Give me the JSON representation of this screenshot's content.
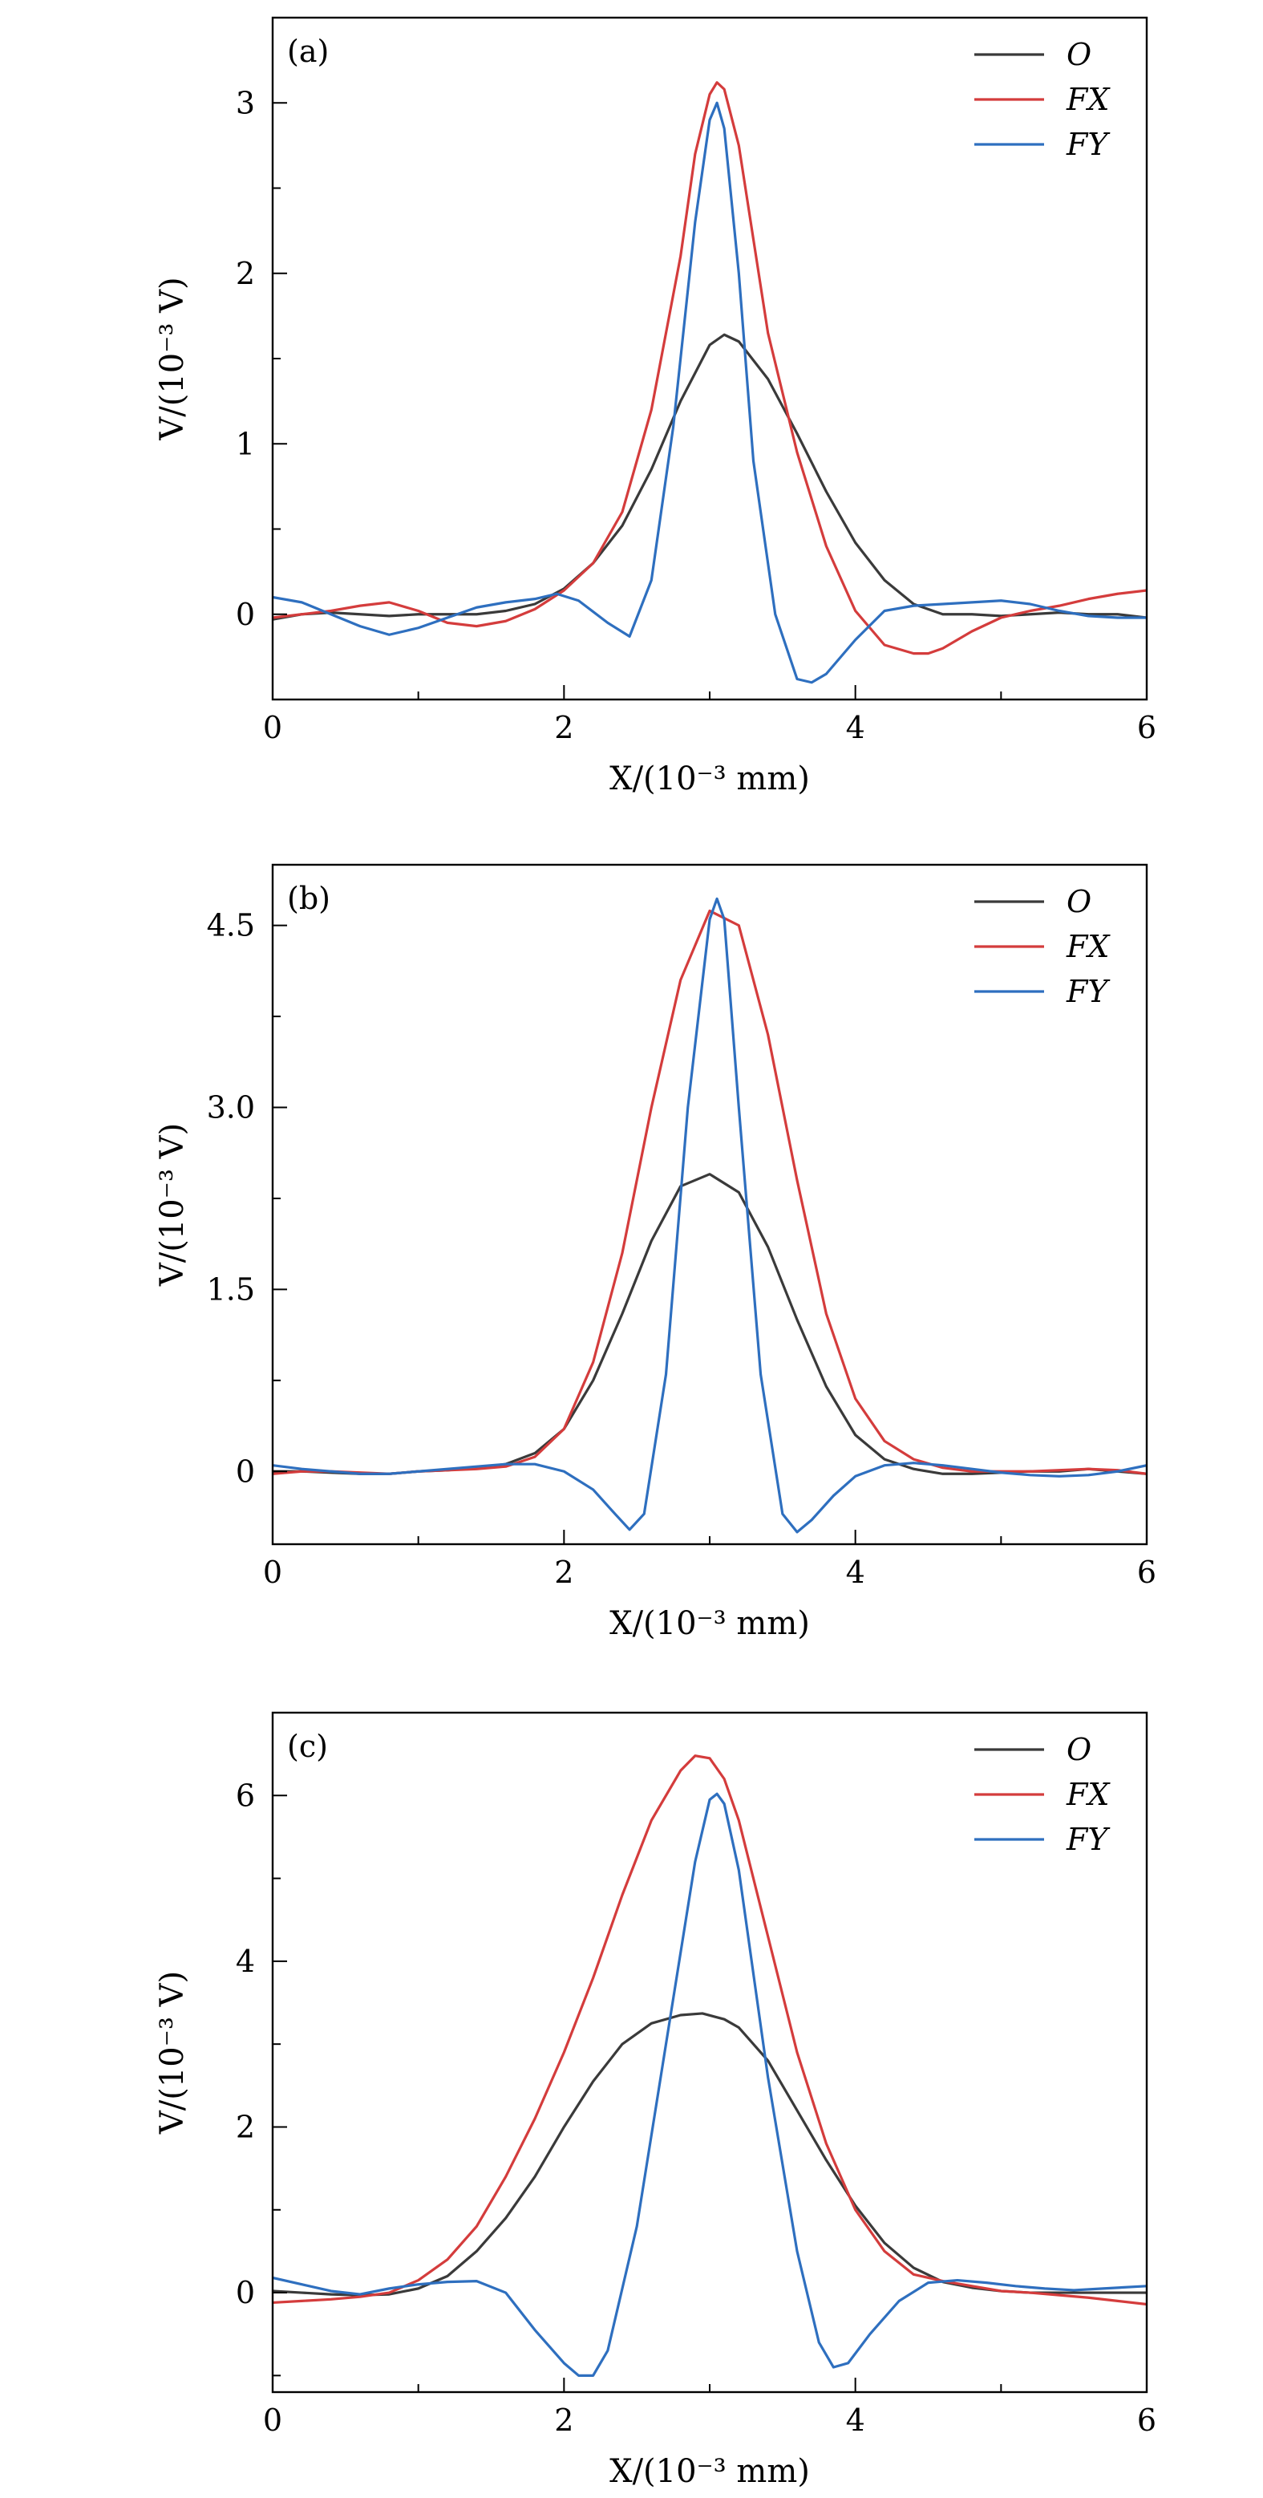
{
  "chart_data": [
    {
      "type": "line",
      "panel_label": "(a)",
      "xlabel": "X/(10⁻³ mm)",
      "ylabel": "V/(10⁻³ V)",
      "xlim": [
        0,
        6
      ],
      "ylim": [
        -0.5,
        3.5
      ],
      "xticks": [
        "0",
        "2",
        "4",
        "6"
      ],
      "yticks": [
        "0",
        "1",
        "2",
        "3"
      ],
      "legend_position": "top-right",
      "series": [
        {
          "name": "O",
          "color": "#3a3a3a",
          "x": [
            0,
            0.2,
            0.4,
            0.6,
            0.8,
            1.0,
            1.2,
            1.4,
            1.6,
            1.8,
            2.0,
            2.2,
            2.4,
            2.6,
            2.8,
            3.0,
            3.1,
            3.2,
            3.4,
            3.6,
            3.8,
            4.0,
            4.2,
            4.4,
            4.6,
            4.8,
            5.0,
            5.2,
            5.4,
            5.6,
            5.8,
            6.0
          ],
          "y": [
            -0.03,
            0.0,
            0.01,
            0.0,
            -0.01,
            0.0,
            0.0,
            0.0,
            0.02,
            0.06,
            0.15,
            0.3,
            0.52,
            0.85,
            1.25,
            1.58,
            1.64,
            1.6,
            1.38,
            1.06,
            0.72,
            0.42,
            0.2,
            0.06,
            0.0,
            0.0,
            -0.01,
            0.0,
            0.01,
            0.0,
            0.0,
            -0.02
          ]
        },
        {
          "name": "FX",
          "color": "#d43c3c",
          "x": [
            0,
            0.2,
            0.4,
            0.6,
            0.8,
            1.0,
            1.2,
            1.4,
            1.6,
            1.8,
            2.0,
            2.2,
            2.4,
            2.6,
            2.8,
            2.9,
            3.0,
            3.05,
            3.1,
            3.2,
            3.3,
            3.4,
            3.6,
            3.8,
            4.0,
            4.2,
            4.4,
            4.5,
            4.6,
            4.8,
            5.0,
            5.2,
            5.4,
            5.6,
            5.8,
            6.0
          ],
          "y": [
            -0.02,
            0.0,
            0.02,
            0.05,
            0.07,
            0.02,
            -0.05,
            -0.07,
            -0.04,
            0.03,
            0.14,
            0.3,
            0.6,
            1.2,
            2.1,
            2.7,
            3.05,
            3.12,
            3.08,
            2.75,
            2.2,
            1.65,
            0.95,
            0.4,
            0.02,
            -0.18,
            -0.23,
            -0.23,
            -0.2,
            -0.1,
            -0.02,
            0.02,
            0.05,
            0.09,
            0.12,
            0.14
          ]
        },
        {
          "name": "FY",
          "color": "#2e6fbf",
          "x": [
            0,
            0.2,
            0.4,
            0.6,
            0.8,
            1.0,
            1.2,
            1.4,
            1.6,
            1.8,
            1.95,
            2.1,
            2.3,
            2.45,
            2.6,
            2.75,
            2.9,
            3.0,
            3.05,
            3.1,
            3.2,
            3.3,
            3.45,
            3.6,
            3.7,
            3.8,
            4.0,
            4.2,
            4.4,
            4.6,
            4.8,
            5.0,
            5.2,
            5.4,
            5.6,
            5.8,
            6.0
          ],
          "y": [
            0.1,
            0.07,
            0.0,
            -0.07,
            -0.12,
            -0.08,
            -0.02,
            0.04,
            0.07,
            0.09,
            0.12,
            0.08,
            -0.05,
            -0.13,
            0.2,
            1.1,
            2.3,
            2.9,
            3.0,
            2.85,
            2.0,
            0.9,
            0.0,
            -0.38,
            -0.4,
            -0.35,
            -0.15,
            0.02,
            0.05,
            0.06,
            0.07,
            0.08,
            0.06,
            0.02,
            -0.01,
            -0.02,
            -0.02
          ]
        }
      ]
    },
    {
      "type": "line",
      "panel_label": "(b)",
      "xlabel": "X/(10⁻³ mm)",
      "ylabel": "V/(10⁻³ V)",
      "xlim": [
        0,
        6
      ],
      "ylim": [
        -0.6,
        5.0
      ],
      "xticks": [
        "0",
        "2",
        "4",
        "6"
      ],
      "yticks": [
        "0",
        "1.5",
        "3.0",
        "4.5"
      ],
      "legend_position": "top-right",
      "series": [
        {
          "name": "O",
          "color": "#3a3a3a",
          "x": [
            0,
            0.2,
            0.4,
            0.6,
            0.8,
            1.0,
            1.2,
            1.4,
            1.6,
            1.8,
            2.0,
            2.2,
            2.4,
            2.6,
            2.8,
            3.0,
            3.2,
            3.4,
            3.6,
            3.8,
            4.0,
            4.2,
            4.4,
            4.6,
            4.8,
            5.0,
            5.2,
            5.4,
            5.6,
            5.8,
            6.0
          ],
          "y": [
            0.0,
            0.0,
            -0.01,
            -0.02,
            -0.02,
            0.0,
            0.01,
            0.03,
            0.06,
            0.15,
            0.35,
            0.75,
            1.3,
            1.9,
            2.35,
            2.45,
            2.3,
            1.85,
            1.25,
            0.7,
            0.3,
            0.1,
            0.02,
            -0.02,
            -0.02,
            -0.01,
            0.0,
            0.0,
            0.02,
            0.0,
            -0.02
          ]
        },
        {
          "name": "FX",
          "color": "#d43c3c",
          "x": [
            0,
            0.2,
            0.4,
            0.6,
            0.8,
            1.0,
            1.2,
            1.4,
            1.6,
            1.8,
            2.0,
            2.2,
            2.4,
            2.6,
            2.8,
            3.0,
            3.2,
            3.4,
            3.6,
            3.8,
            4.0,
            4.2,
            4.4,
            4.6,
            4.8,
            5.0,
            5.2,
            5.4,
            5.6,
            5.8,
            6.0
          ],
          "y": [
            -0.02,
            0.0,
            0.0,
            -0.01,
            -0.02,
            0.0,
            0.01,
            0.02,
            0.04,
            0.12,
            0.35,
            0.9,
            1.8,
            3.0,
            4.05,
            4.62,
            4.5,
            3.6,
            2.4,
            1.3,
            0.6,
            0.25,
            0.1,
            0.03,
            0.0,
            0.0,
            0.0,
            0.01,
            0.02,
            0.01,
            -0.02
          ]
        },
        {
          "name": "FY",
          "color": "#2e6fbf",
          "x": [
            0,
            0.2,
            0.4,
            0.6,
            0.8,
            1.0,
            1.2,
            1.4,
            1.6,
            1.8,
            2.0,
            2.2,
            2.35,
            2.45,
            2.55,
            2.7,
            2.85,
            3.0,
            3.05,
            3.1,
            3.2,
            3.35,
            3.5,
            3.6,
            3.7,
            3.85,
            4.0,
            4.2,
            4.4,
            4.6,
            4.8,
            5.0,
            5.2,
            5.4,
            5.6,
            5.8,
            6.0
          ],
          "y": [
            0.05,
            0.02,
            0.0,
            -0.02,
            -0.02,
            0.0,
            0.02,
            0.04,
            0.06,
            0.06,
            0.0,
            -0.15,
            -0.35,
            -0.48,
            -0.35,
            0.8,
            3.0,
            4.55,
            4.72,
            4.55,
            3.0,
            0.8,
            -0.35,
            -0.5,
            -0.4,
            -0.2,
            -0.04,
            0.05,
            0.07,
            0.05,
            0.02,
            -0.01,
            -0.03,
            -0.04,
            -0.03,
            0.0,
            0.05
          ]
        }
      ]
    },
    {
      "type": "line",
      "panel_label": "(c)",
      "xlabel": "X/(10⁻³ mm)",
      "ylabel": "V/(10⁻³ V)",
      "xlim": [
        0,
        6
      ],
      "ylim": [
        -1.2,
        7.0
      ],
      "xticks": [
        "0",
        "2",
        "4",
        "6"
      ],
      "yticks": [
        "0",
        "2",
        "4",
        "6"
      ],
      "legend_position": "top-right",
      "series": [
        {
          "name": "O",
          "color": "#3a3a3a",
          "x": [
            0,
            0.2,
            0.4,
            0.6,
            0.8,
            1.0,
            1.2,
            1.4,
            1.6,
            1.8,
            2.0,
            2.2,
            2.4,
            2.6,
            2.8,
            2.95,
            3.1,
            3.2,
            3.4,
            3.6,
            3.8,
            4.0,
            4.2,
            4.4,
            4.6,
            4.8,
            5.0,
            5.2,
            5.4,
            5.6,
            5.8,
            6.0
          ],
          "y": [
            0.02,
            0.0,
            -0.02,
            -0.03,
            -0.02,
            0.05,
            0.2,
            0.5,
            0.9,
            1.4,
            2.0,
            2.55,
            3.0,
            3.25,
            3.35,
            3.37,
            3.3,
            3.2,
            2.8,
            2.2,
            1.6,
            1.05,
            0.6,
            0.3,
            0.13,
            0.06,
            0.02,
            0.0,
            0.0,
            0.0,
            0.0,
            0.0
          ]
        },
        {
          "name": "FX",
          "color": "#d43c3c",
          "x": [
            0,
            0.2,
            0.4,
            0.6,
            0.8,
            1.0,
            1.2,
            1.4,
            1.6,
            1.8,
            2.0,
            2.2,
            2.4,
            2.6,
            2.8,
            2.9,
            3.0,
            3.1,
            3.2,
            3.4,
            3.6,
            3.8,
            4.0,
            4.2,
            4.4,
            4.6,
            4.8,
            5.0,
            5.2,
            5.4,
            5.6,
            5.8,
            6.0
          ],
          "y": [
            -0.12,
            -0.1,
            -0.08,
            -0.05,
            0.0,
            0.15,
            0.4,
            0.8,
            1.4,
            2.1,
            2.9,
            3.8,
            4.8,
            5.7,
            6.3,
            6.48,
            6.45,
            6.2,
            5.7,
            4.3,
            2.9,
            1.8,
            1.0,
            0.5,
            0.22,
            0.14,
            0.08,
            0.02,
            0.0,
            -0.03,
            -0.06,
            -0.1,
            -0.14
          ]
        },
        {
          "name": "FY",
          "color": "#2e6fbf",
          "x": [
            0,
            0.2,
            0.4,
            0.6,
            0.8,
            1.0,
            1.2,
            1.4,
            1.6,
            1.8,
            2.0,
            2.1,
            2.2,
            2.3,
            2.5,
            2.7,
            2.9,
            3.0,
            3.05,
            3.1,
            3.2,
            3.4,
            3.6,
            3.75,
            3.85,
            3.95,
            4.1,
            4.3,
            4.5,
            4.7,
            4.9,
            5.1,
            5.3,
            5.5,
            5.7,
            6.0
          ],
          "y": [
            0.18,
            0.1,
            0.02,
            -0.02,
            0.05,
            0.1,
            0.13,
            0.14,
            0.0,
            -0.45,
            -0.85,
            -1.0,
            -1.0,
            -0.7,
            0.8,
            3.0,
            5.2,
            5.95,
            6.02,
            5.9,
            5.1,
            2.6,
            0.5,
            -0.6,
            -0.9,
            -0.85,
            -0.5,
            -0.1,
            0.12,
            0.15,
            0.12,
            0.08,
            0.05,
            0.03,
            0.05,
            0.08
          ]
        }
      ]
    }
  ]
}
